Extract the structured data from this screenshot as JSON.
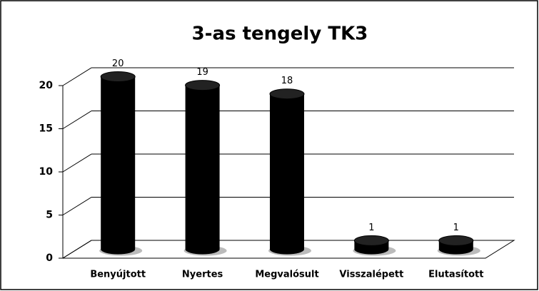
{
  "chart_data": {
    "type": "bar",
    "title": "3-as tengely TK3",
    "categories": [
      "Benyújtott",
      "Nyertes",
      "Megvalósult",
      "Visszalépett",
      "Elutasított"
    ],
    "values": [
      20,
      19,
      18,
      1,
      1
    ],
    "color": "#000000",
    "ylim": [
      0,
      20
    ],
    "yticks": [
      0,
      5,
      10,
      15,
      20
    ],
    "grid": true
  }
}
